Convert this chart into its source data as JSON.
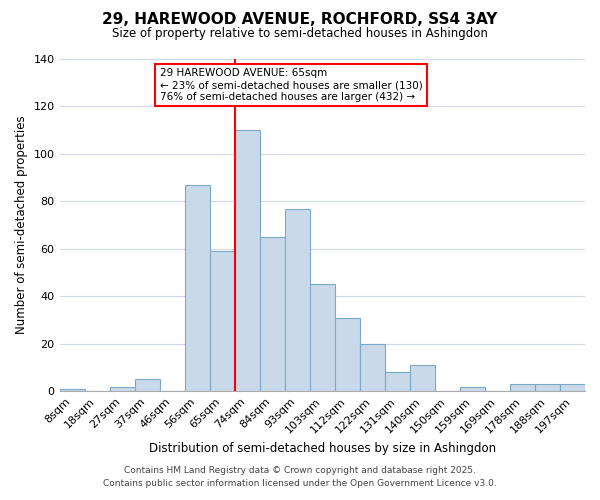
{
  "title": "29, HAREWOOD AVENUE, ROCHFORD, SS4 3AY",
  "subtitle": "Size of property relative to semi-detached houses in Ashingdon",
  "xlabel": "Distribution of semi-detached houses by size in Ashingdon",
  "ylabel": "Number of semi-detached properties",
  "categories": [
    "8sqm",
    "18sqm",
    "27sqm",
    "37sqm",
    "46sqm",
    "56sqm",
    "65sqm",
    "74sqm",
    "84sqm",
    "93sqm",
    "103sqm",
    "112sqm",
    "122sqm",
    "131sqm",
    "140sqm",
    "150sqm",
    "159sqm",
    "169sqm",
    "178sqm",
    "188sqm",
    "197sqm"
  ],
  "values": [
    1,
    0,
    2,
    5,
    0,
    87,
    59,
    110,
    65,
    77,
    45,
    31,
    20,
    8,
    11,
    0,
    2,
    0,
    3,
    3,
    3
  ],
  "bar_color": "#c9d9ea",
  "bar_edge_color": "#7aaac8",
  "red_line_index": 6,
  "property_label": "29 HAREWOOD AVENUE: 65sqm",
  "smaller_text": "← 23% of semi-detached houses are smaller (130)",
  "larger_text": "76% of semi-detached houses are larger (432) →",
  "ylim": [
    0,
    140
  ],
  "yticks": [
    0,
    20,
    40,
    60,
    80,
    100,
    120,
    140
  ],
  "footer_line1": "Contains HM Land Registry data © Crown copyright and database right 2025.",
  "footer_line2": "Contains public sector information licensed under the Open Government Licence v3.0.",
  "background_color": "#ffffff",
  "plot_bg_color": "#ffffff",
  "grid_color": "#d0d8e8"
}
